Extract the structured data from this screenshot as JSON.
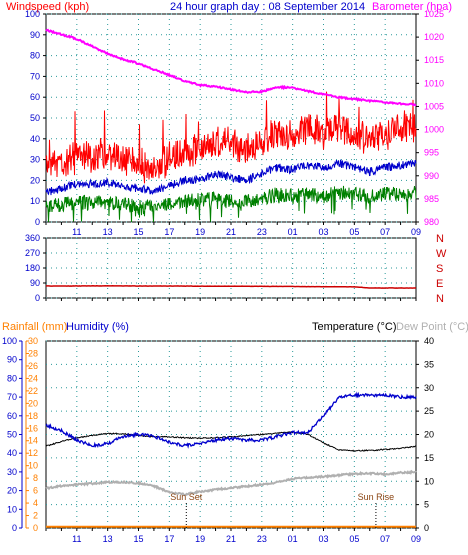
{
  "header": {
    "left_label": "Windspeed (kph)",
    "center_label": "24 hour graph day : 08 September 2014",
    "right_label": "Barometer (hpa)"
  },
  "colors": {
    "background": "#ffffff",
    "grid": "#2a9a9a",
    "axis_blue": "#0000cc",
    "wind_gust": "#ff0000",
    "wind_avg": "#0000cc",
    "wind_min": "#008000",
    "barometer": "#ff00ff",
    "direction": "#cc0000",
    "temperature": "#000000",
    "humidity": "#0000cc",
    "dewpoint": "#b0b0b0",
    "rainfall": "#ff8000"
  },
  "x_tick_labels": [
    "11",
    "13",
    "15",
    "17",
    "19",
    "21",
    "23",
    "01",
    "03",
    "05",
    "07",
    "09"
  ],
  "chart_data": [
    {
      "type": "line",
      "title": "24 hour graph day : 08 September 2014",
      "left_axis": {
        "label": "Windspeed (kph)",
        "range": [
          0,
          100
        ],
        "ticks": [
          "0",
          "10",
          "20",
          "30",
          "40",
          "50",
          "60",
          "70",
          "80",
          "90",
          "100"
        ]
      },
      "right_axis": {
        "label": "Barometer (hpa)",
        "range": [
          980,
          1025
        ],
        "ticks": [
          "980",
          "985",
          "990",
          "995",
          "1000",
          "1005",
          "1010",
          "1015",
          "1020",
          "1025"
        ]
      },
      "x_hours_from_0900": [
        0,
        1,
        2,
        3,
        4,
        5,
        6,
        7,
        8,
        9,
        10,
        11,
        12,
        13,
        14,
        15,
        16,
        17,
        18,
        19,
        20,
        21,
        22,
        23,
        24
      ],
      "series": [
        {
          "name": "Windspeed (kph)",
          "axis": "left",
          "values": [
            24,
            28,
            30,
            30,
            32,
            30,
            27,
            24,
            30,
            32,
            33,
            38,
            36,
            34,
            38,
            42,
            40,
            44,
            42,
            45,
            42,
            40,
            42,
            44,
            46
          ]
        },
        {
          "name": "",
          "axis": "left",
          "values": [
            14,
            16,
            18,
            18,
            19,
            17,
            16,
            15,
            17,
            20,
            20,
            23,
            21,
            20,
            23,
            26,
            25,
            27,
            26,
            28,
            26,
            24,
            26,
            27,
            28
          ]
        },
        {
          "name": "",
          "axis": "left",
          "values": [
            7,
            8,
            9,
            9,
            9,
            8,
            7,
            7,
            8,
            10,
            10,
            11,
            10,
            10,
            11,
            13,
            12,
            13,
            12,
            14,
            13,
            12,
            13,
            13,
            14
          ]
        },
        {
          "name": "Barometer (hpa)",
          "axis": "right",
          "values": [
            1021.5,
            1020.6,
            1019.6,
            1018.0,
            1016.4,
            1015.2,
            1014.3,
            1013.0,
            1011.8,
            1010.5,
            1009.6,
            1009.3,
            1008.7,
            1008.1,
            1008.2,
            1009.2,
            1009.0,
            1008.3,
            1007.6,
            1007.0,
            1006.6,
            1006.2,
            1005.9,
            1005.6,
            1005.4
          ]
        }
      ]
    },
    {
      "type": "line",
      "left_axis": {
        "range": [
          0,
          360
        ],
        "ticks": [
          "0",
          "90",
          "180",
          "270",
          "360"
        ]
      },
      "right_axis": {
        "ticks": [
          "N",
          "W",
          "S",
          "E",
          "N"
        ]
      },
      "x_hours_from_0900": [
        0,
        2,
        4,
        6,
        8,
        10,
        12,
        14,
        16,
        18,
        20,
        21,
        22,
        24
      ],
      "series": [
        {
          "name": "",
          "values": [
            72,
            72,
            73,
            72,
            72,
            71,
            71,
            70,
            69,
            68,
            67,
            60,
            60,
            60
          ]
        }
      ]
    },
    {
      "type": "line",
      "title": "Temperature (°C)",
      "left_axes": [
        {
          "label": "Rainfall (mm)",
          "range": [
            0,
            30
          ],
          "ticks": [
            "0",
            "2",
            "4",
            "6",
            "8",
            "10",
            "12",
            "14",
            "16",
            "18",
            "20",
            "22",
            "24",
            "26",
            "28",
            "30"
          ]
        },
        {
          "label": "Humidity (%)",
          "range": [
            0,
            100
          ],
          "ticks": [
            "0",
            "10",
            "20",
            "30",
            "40",
            "50",
            "60",
            "70",
            "80",
            "90",
            "100"
          ]
        }
      ],
      "right_axis": {
        "label": "Temperature (°C)",
        "range": [
          0,
          40
        ],
        "ticks": [
          "0",
          "5",
          "10",
          "15",
          "20",
          "25",
          "30",
          "35",
          "40"
        ]
      },
      "right_axis_secondary_label": "Dew Point (°C)",
      "annotations": [
        {
          "text": "Sun Set",
          "at_hour": 9.1
        },
        {
          "text": "Sun Rise",
          "at_hour": 21.4
        }
      ],
      "x_hours_from_0900": [
        0,
        1,
        2,
        3,
        4,
        5,
        6,
        7,
        8,
        9,
        10,
        11,
        12,
        13,
        14,
        15,
        16,
        17,
        18,
        19,
        20,
        21,
        22,
        23,
        24
      ],
      "series": [
        {
          "name": "Temperature (°C)",
          "axis": "right",
          "values": [
            17.5,
            18.5,
            19.3,
            19.8,
            20.2,
            20.2,
            19.8,
            19.5,
            19.5,
            19.3,
            19.2,
            19.3,
            19.5,
            19.8,
            20,
            20.3,
            20.5,
            20,
            18.2,
            16.7,
            16.5,
            16.6,
            16.8,
            17.0,
            17.5
          ]
        },
        {
          "name": "Humidity (%)",
          "axis": "humidity",
          "values": [
            55,
            52,
            47,
            44,
            45,
            49,
            50,
            49,
            46,
            44,
            45,
            47,
            48,
            47,
            47,
            49,
            51,
            51,
            60,
            70,
            71,
            71,
            71,
            70,
            70
          ]
        },
        {
          "name": "Dew Point (°C)",
          "axis": "right",
          "values": [
            8.5,
            9.0,
            9.3,
            9.5,
            9.8,
            9.8,
            9.6,
            9.0,
            7.6,
            7.2,
            7.8,
            8.2,
            8.6,
            8.9,
            9.3,
            9.8,
            10.5,
            10.8,
            11.0,
            11.3,
            11.6,
            11.7,
            11.5,
            11.8,
            12.0
          ]
        },
        {
          "name": "Rainfall (mm)",
          "axis": "rain",
          "values": [
            0.2,
            0.2,
            0.2,
            0.2,
            0.2,
            0.2,
            0.2,
            0.2,
            0.2,
            0.2,
            0.2,
            0.2,
            0.2,
            0.2,
            0.2,
            0.2,
            0.2,
            0.2,
            0.2,
            0.2,
            0.2,
            0.2,
            0.2,
            0.2,
            0.2
          ]
        }
      ]
    }
  ],
  "panel2_right_labels": [
    "N",
    "W",
    "S",
    "E",
    "N"
  ],
  "panel3_header": {
    "rain_label": "Rainfall (mm)",
    "humidity_label": "Humidity (%)",
    "temp_label": "Temperature (°C)",
    "dew_label": "Dew Point (°C)"
  }
}
